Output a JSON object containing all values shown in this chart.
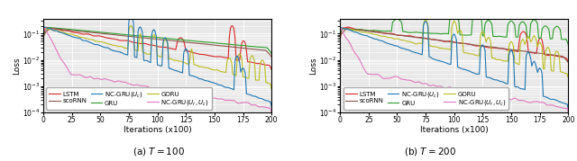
{
  "xlim": [
    0,
    200
  ],
  "xlabel": "Iterations (x100)",
  "ylabel": "Loss",
  "title_a": "(a) $T = 100$",
  "title_b": "(b) $T = 200$",
  "colors": {
    "LSTM": "#d62728",
    "GRU": "#2ca02c",
    "scoRNN": "#8c564b",
    "GORU": "#bcbd22",
    "NC-GRU(Uc)": "#1f77b4",
    "NC-GRU(Ur,Uc)": "#e377c2"
  },
  "background": "#e8e8e8",
  "grid_color": "#ffffff",
  "lw": 0.8,
  "tick_fontsize": 5.5,
  "label_fontsize": 6.5,
  "legend_fontsize": 5.0
}
